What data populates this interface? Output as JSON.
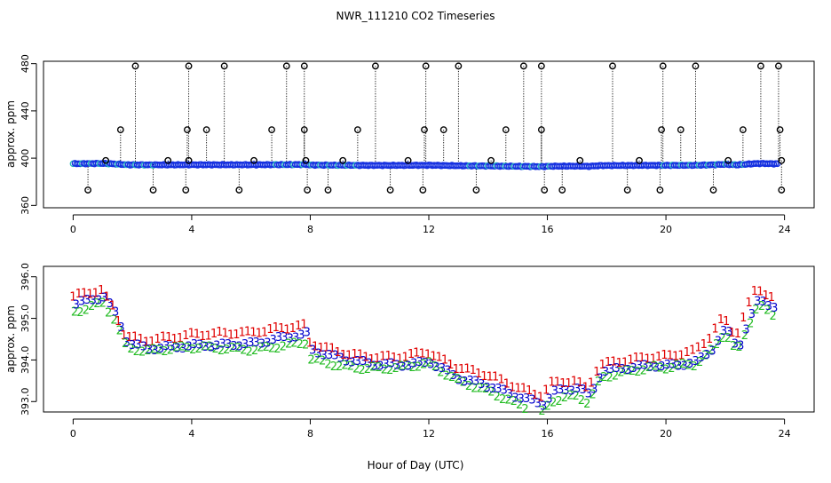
{
  "chart_data": [
    {
      "type": "scatter",
      "title": "NWR_111210  CO2 Timeseries",
      "xlabel": "",
      "ylabel": "approx. ppm",
      "xlim": [
        -1,
        25
      ],
      "ylim": [
        358,
        482
      ],
      "xticks": [
        "0",
        "4",
        "8",
        "12",
        "16",
        "20",
        "24"
      ],
      "yticks": [
        "360",
        "400",
        "440",
        "480"
      ],
      "flagged_high_x": [
        2.1,
        3.9,
        5.1,
        7.2,
        7.8,
        10.2,
        11.9,
        13.0,
        15.2,
        15.8,
        18.2,
        19.9,
        21.0,
        23.2,
        23.8
      ],
      "flagged_high_y": 478,
      "flagged_mid_x": [
        1.6,
        3.85,
        4.5,
        6.7,
        7.8,
        9.6,
        11.85,
        12.5,
        14.6,
        15.8,
        19.85,
        20.5,
        22.6,
        23.85
      ],
      "flagged_mid_y": 424,
      "flagged_low_x": [
        0.5,
        2.7,
        3.8,
        5.6,
        7.9,
        8.6,
        10.7,
        11.8,
        13.6,
        15.9,
        16.5,
        18.7,
        19.8,
        21.6,
        23.9
      ],
      "flagged_low_y": 373,
      "flagged_near_x": [
        1.1,
        3.2,
        3.9,
        6.1,
        7.85,
        9.1,
        11.3,
        14.1,
        17.1,
        19.1,
        22.1,
        23.9
      ],
      "flagged_near_y": 398,
      "series": [
        {
          "name": "1",
          "color": "#e00000"
        },
        {
          "name": "2",
          "color": "#22bb22"
        },
        {
          "name": "3",
          "color": "#0000cc"
        }
      ],
      "baseline_hours": [
        0,
        1,
        1.4,
        1.8,
        2.5,
        4,
        6,
        7.9,
        8,
        9,
        10,
        11,
        12,
        13,
        14,
        15,
        15.8,
        16.2,
        17,
        17.4,
        17.8,
        18.5,
        19.5,
        20,
        21,
        21.5,
        22,
        22.4,
        22.8,
        23.1,
        23.7
      ],
      "baseline_values": [
        395.3,
        395.5,
        395.1,
        394.4,
        394.3,
        394.4,
        394.4,
        394.6,
        394.2,
        394.0,
        393.9,
        393.9,
        394.0,
        393.6,
        393.4,
        393.1,
        392.9,
        393.2,
        393.3,
        393.1,
        393.7,
        393.8,
        393.9,
        393.9,
        394.0,
        394.3,
        394.8,
        394.3,
        395.0,
        395.5,
        395.2
      ]
    },
    {
      "type": "scatter",
      "title": "",
      "xlabel": "Hour of Day (UTC)",
      "ylabel": "approx. ppm",
      "xlim": [
        -1,
        25
      ],
      "ylim": [
        392.75,
        396.25
      ],
      "xticks": [
        "0",
        "4",
        "8",
        "12",
        "16",
        "20",
        "24"
      ],
      "yticks": [
        "393.0",
        "394.0",
        "395.0",
        "396.0"
      ],
      "series": [
        {
          "name": "1",
          "color": "#e00000",
          "offset": 0.22
        },
        {
          "name": "2",
          "color": "#22bb22",
          "offset": -0.12
        },
        {
          "name": "3",
          "color": "#0000cc",
          "offset": 0.0
        }
      ]
    }
  ]
}
